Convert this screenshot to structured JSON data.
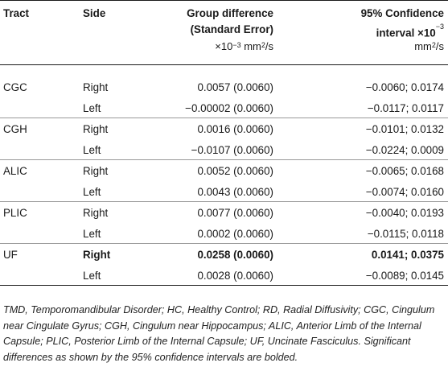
{
  "header": {
    "tract": "Tract",
    "side": "Side",
    "group_diff_line1": "Group difference",
    "group_diff_line2": "(Standard Error)",
    "group_diff_unit": "×10",
    "group_diff_exp": "−3",
    "group_diff_unit_tail": " mm",
    "group_diff_unit_sup2": "2",
    "group_diff_unit_end": "/s",
    "ci_line1": "95% Confidence",
    "ci_line2": "interval ×10",
    "ci_line2_exp": "−3",
    "ci_line3": "mm",
    "ci_line3_sup": "2",
    "ci_line3_end": "/s"
  },
  "rows": [
    {
      "tract": "CGC",
      "side": "Right",
      "diff": "0.0057 (0.0060)",
      "ci": "−0.0060; 0.0174",
      "bold": false
    },
    {
      "tract": "",
      "side": "Left",
      "diff": "−0.00002 (0.0060)",
      "ci": "−0.0117; 0.0117",
      "bold": false
    },
    {
      "tract": "CGH",
      "side": "Right",
      "diff": "0.0016 (0.0060)",
      "ci": "−0.0101; 0.0132",
      "bold": false
    },
    {
      "tract": "",
      "side": "Left",
      "diff": "−0.0107 (0.0060)",
      "ci": "−0.0224; 0.0009",
      "bold": false
    },
    {
      "tract": "ALIC",
      "side": "Right",
      "diff": "0.0052 (0.0060)",
      "ci": "−0.0065; 0.0168",
      "bold": false
    },
    {
      "tract": "",
      "side": "Left",
      "diff": "0.0043 (0.0060)",
      "ci": "−0.0074; 0.0160",
      "bold": false
    },
    {
      "tract": "PLIC",
      "side": "Right",
      "diff": "0.0077 (0.0060)",
      "ci": "−0.0040; 0.0193",
      "bold": false
    },
    {
      "tract": "",
      "side": "Left",
      "diff": "0.0002 (0.0060)",
      "ci": "−0.0115; 0.0118",
      "bold": false
    },
    {
      "tract": "UF",
      "side": "Right",
      "diff": "0.0258 (0.0060)",
      "ci": "0.0141; 0.0375",
      "bold": true
    },
    {
      "tract": "",
      "side": "Left",
      "diff": "0.0028 (0.0060)",
      "ci": "−0.0089; 0.0145",
      "bold": false
    }
  ],
  "footnote": "TMD, Temporomandibular Disorder; HC, Healthy Control; RD, Radial Diffusivity; CGC, Cingulum near Cingulate Gyrus; CGH, Cingulum near Hippocampus; ALIC, Anterior Limb of the Internal Capsule; PLIC, Posterior Limb of the Internal Capsule; UF, Uncinate Fasciculus. Significant differences as shown by the 95% confidence intervals are bolded."
}
